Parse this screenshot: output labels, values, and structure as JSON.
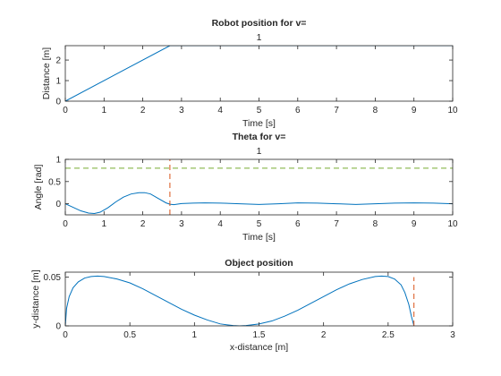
{
  "chart_data": [
    {
      "type": "line",
      "title": "Robot position for v=",
      "subtitle": "1",
      "xlabel": "Time [s]",
      "ylabel": "Distance [m]",
      "xlim": [
        0,
        10
      ],
      "ylim": [
        0,
        2.7
      ],
      "xticks": [
        0,
        1,
        2,
        3,
        4,
        5,
        6,
        7,
        8,
        9,
        10
      ],
      "xtick_labels": [
        "0",
        "1",
        "2",
        "3",
        "4",
        "5",
        "6",
        "7",
        "8",
        "9",
        "10"
      ],
      "yticks": [
        0,
        1,
        2
      ],
      "ytick_labels": [
        "0",
        "1",
        "2"
      ],
      "grid": false,
      "series": [
        {
          "color": "#0072BD",
          "style": "solid",
          "x": [
            0,
            2.7,
            10
          ],
          "y": [
            0,
            2.7,
            2.7
          ]
        }
      ]
    },
    {
      "type": "line",
      "title": "Theta for v=",
      "subtitle": "1",
      "xlabel": "Time [s]",
      "ylabel": "Angle [rad]",
      "xlim": [
        0,
        10
      ],
      "ylim": [
        -0.25,
        1
      ],
      "xticks": [
        0,
        1,
        2,
        3,
        4,
        5,
        6,
        7,
        8,
        9,
        10
      ],
      "xtick_labels": [
        "0",
        "1",
        "2",
        "3",
        "4",
        "5",
        "6",
        "7",
        "8",
        "9",
        "10"
      ],
      "yticks": [
        0,
        0.5,
        1
      ],
      "ytick_labels": [
        "0",
        "0.5",
        "1"
      ],
      "grid": false,
      "series": [
        {
          "color": "#0072BD",
          "style": "solid",
          "x": [
            0,
            0.2,
            0.4,
            0.6,
            0.75,
            0.9,
            1.1,
            1.3,
            1.5,
            1.7,
            1.9,
            2.05,
            2.2,
            2.4,
            2.6,
            2.7,
            2.8,
            3.0,
            3.3,
            3.6,
            4.0,
            4.5,
            5.0,
            5.5,
            6.0,
            6.5,
            7.0,
            7.5,
            8.0,
            8.5,
            9.0,
            9.5,
            10.0
          ],
          "y": [
            0,
            -0.08,
            -0.16,
            -0.21,
            -0.22,
            -0.19,
            -0.09,
            0.04,
            0.15,
            0.22,
            0.25,
            0.25,
            0.22,
            0.12,
            0.02,
            -0.01,
            -0.02,
            0.005,
            0.015,
            0.02,
            0.015,
            0.0,
            -0.015,
            0.0,
            0.02,
            0.015,
            0.0,
            -0.015,
            0.0,
            0.015,
            0.02,
            0.015,
            0.0
          ]
        },
        {
          "color": "#77AC30",
          "style": "dashed",
          "x": [
            0,
            10
          ],
          "y": [
            0.8,
            0.8
          ]
        },
        {
          "color": "#D95319",
          "style": "dashed",
          "x": [
            2.7,
            2.7
          ],
          "y": [
            -0.25,
            1
          ]
        }
      ]
    },
    {
      "type": "line",
      "title": "Object position",
      "subtitle": "",
      "xlabel": "x-distance [m]",
      "ylabel": "y-distance [m]",
      "xlim": [
        0,
        3
      ],
      "ylim": [
        0,
        0.055
      ],
      "xticks": [
        0,
        0.5,
        1,
        1.5,
        2,
        2.5,
        3
      ],
      "xtick_labels": [
        "0",
        "0.5",
        "1",
        "1.5",
        "2",
        "2.5",
        "3"
      ],
      "yticks": [
        0,
        0.05
      ],
      "ytick_labels": [
        "0",
        "0.05"
      ],
      "grid": false,
      "series": [
        {
          "color": "#0072BD",
          "style": "solid",
          "x": [
            0,
            0.01,
            0.03,
            0.06,
            0.1,
            0.15,
            0.2,
            0.25,
            0.3,
            0.4,
            0.5,
            0.6,
            0.7,
            0.8,
            0.9,
            1.0,
            1.1,
            1.2,
            1.3,
            1.35,
            1.4,
            1.5,
            1.6,
            1.7,
            1.8,
            1.9,
            2.0,
            2.1,
            2.2,
            2.3,
            2.4,
            2.45,
            2.5,
            2.55,
            2.6,
            2.63,
            2.66,
            2.68,
            2.7
          ],
          "y": [
            0,
            0.018,
            0.03,
            0.039,
            0.045,
            0.049,
            0.0505,
            0.051,
            0.0505,
            0.048,
            0.044,
            0.038,
            0.031,
            0.024,
            0.017,
            0.011,
            0.006,
            0.002,
            0.0003,
            0.0,
            0.0003,
            0.002,
            0.005,
            0.01,
            0.016,
            0.023,
            0.03,
            0.037,
            0.043,
            0.0475,
            0.0505,
            0.051,
            0.0505,
            0.048,
            0.042,
            0.034,
            0.022,
            0.01,
            0
          ]
        },
        {
          "color": "#D95319",
          "style": "dashed",
          "x": [
            2.7,
            2.7
          ],
          "y": [
            0,
            0.05
          ]
        }
      ]
    }
  ]
}
